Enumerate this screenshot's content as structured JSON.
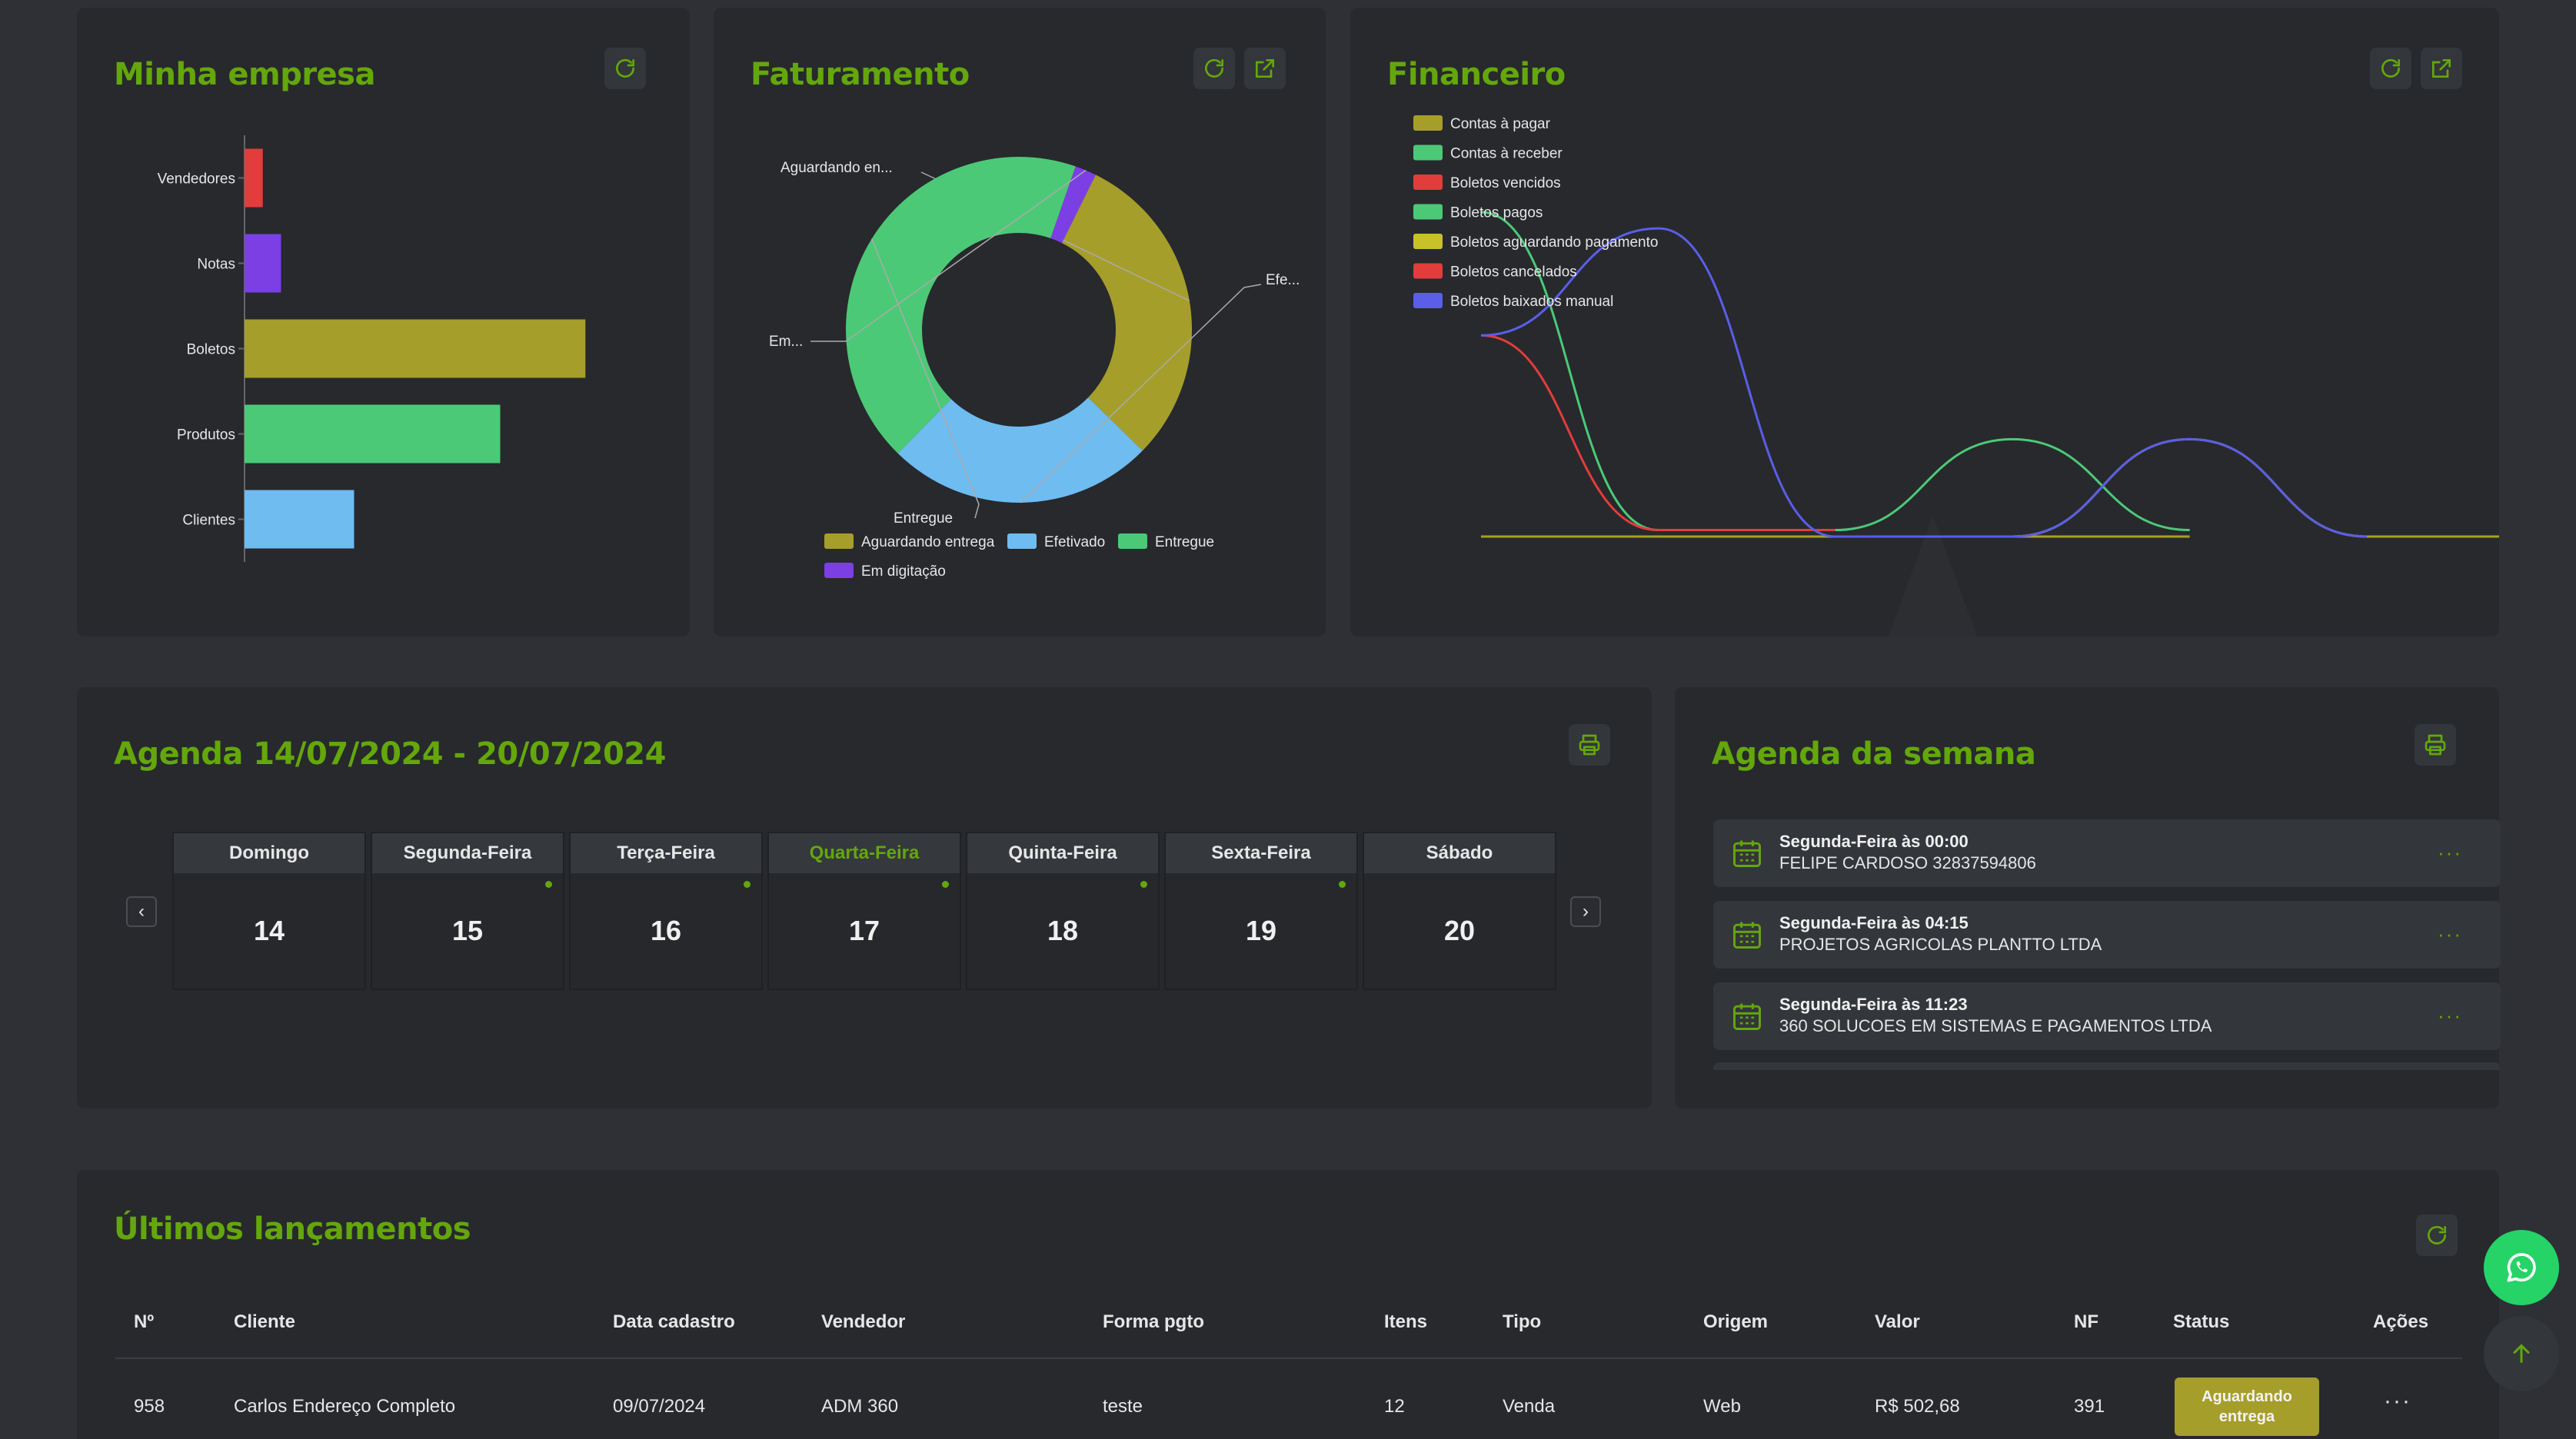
{
  "minha_empresa": {
    "title": "Minha empresa",
    "chart_data": {
      "type": "bar",
      "orientation": "horizontal",
      "categories": [
        "Vendedores",
        "Notas",
        "Boletos",
        "Produtos",
        "Clientes"
      ],
      "values": [
        3,
        6,
        56,
        42,
        18
      ],
      "colors": [
        "#e33c3c",
        "#7b3fe4",
        "#a69e2b",
        "#4cc977",
        "#6ebcf0"
      ],
      "title": "",
      "xlabel": "",
      "ylabel": "",
      "xlim": [
        0,
        60
      ],
      "grid": false
    }
  },
  "faturamento": {
    "title": "Faturamento",
    "chart_data": {
      "type": "pie",
      "donut": true,
      "slices": [
        {
          "label": "Aguardando entrega",
          "short": "Aguardando en...",
          "value": 30,
          "color": "#a69e2b"
        },
        {
          "label": "Efetivado",
          "short": "Efe...",
          "value": 25,
          "color": "#6ebcf0"
        },
        {
          "label": "Entregue",
          "short": "Entregue",
          "value": 43,
          "color": "#4cc977"
        },
        {
          "label": "Em digitação",
          "short": "Em...",
          "value": 2,
          "color": "#7b3fe4"
        }
      ],
      "legend": [
        "Aguardando entrega",
        "Efetivado",
        "Entregue",
        "Em digitação"
      ],
      "legend_position": "bottom"
    }
  },
  "financeiro": {
    "title": "Financeiro",
    "chart_data": {
      "type": "line",
      "smooth": true,
      "x": [
        0,
        1,
        2,
        3,
        4,
        5
      ],
      "ylim": [
        0,
        100
      ],
      "series": [
        {
          "name": "Contas à pagar",
          "color": "#a69e2b",
          "values": [
            0,
            0,
            0,
            0,
            0,
            null
          ]
        },
        {
          "name": "Contas à receber",
          "color": "#4cc977",
          "values": [
            100,
            2,
            2,
            30,
            2,
            null
          ]
        },
        {
          "name": "Boletos vencidos",
          "color": "#e33c3c",
          "values": [
            62,
            2,
            2,
            null,
            null,
            null
          ]
        },
        {
          "name": "Boletos pagos",
          "color": "#4cc977",
          "values": [
            null,
            null,
            null,
            null,
            null,
            null
          ]
        },
        {
          "name": "Boletos aguardando pagamento",
          "color": "#c9c12a",
          "values": [
            null,
            null,
            0,
            0,
            30,
            0
          ]
        },
        {
          "name": "Boletos cancelados",
          "color": "#e33c3c",
          "values": [
            null,
            null,
            null,
            null,
            null,
            null
          ]
        },
        {
          "name": "Boletos baixados manual",
          "color": "#5a5ee8",
          "values": [
            62,
            95,
            0,
            0,
            30,
            0
          ]
        }
      ],
      "legend_position": "top-left",
      "grid": false
    }
  },
  "agenda": {
    "title": "Agenda 14/07/2024 - 20/07/2024",
    "days": [
      {
        "name": "Domingo",
        "num": "14",
        "event": false,
        "active": false
      },
      {
        "name": "Segunda-Feira",
        "num": "15",
        "event": true,
        "active": false
      },
      {
        "name": "Terça-Feira",
        "num": "16",
        "event": true,
        "active": false
      },
      {
        "name": "Quarta-Feira",
        "num": "17",
        "event": true,
        "active": true
      },
      {
        "name": "Quinta-Feira",
        "num": "18",
        "event": true,
        "active": false
      },
      {
        "name": "Sexta-Feira",
        "num": "19",
        "event": true,
        "active": false
      },
      {
        "name": "Sábado",
        "num": "20",
        "event": false,
        "active": false
      }
    ]
  },
  "agenda_semana": {
    "title": "Agenda da semana",
    "events": [
      {
        "when": "Segunda-Feira às 00:00",
        "who": "FELIPE CARDOSO 32837594806"
      },
      {
        "when": "Segunda-Feira às 04:15",
        "who": "PROJETOS AGRICOLAS PLANTTO LTDA"
      },
      {
        "when": "Segunda-Feira às 11:23",
        "who": "360 SOLUCOES EM SISTEMAS E PAGAMENTOS LTDA"
      }
    ]
  },
  "lancamentos": {
    "title": "Últimos lançamentos",
    "columns": [
      "Nº",
      "Cliente",
      "Data cadastro",
      "Vendedor",
      "Forma pgto",
      "Itens",
      "Tipo",
      "Origem",
      "Valor",
      "NF",
      "Status",
      "Ações"
    ],
    "rows": [
      {
        "num": "958",
        "cliente": "Carlos Endereço Completo",
        "data": "09/07/2024",
        "vendedor": "ADM 360",
        "forma": "teste",
        "itens": "12",
        "tipo": "Venda",
        "origem": "Web",
        "valor": "R$ 502,68",
        "nf": "391",
        "status": "Aguardando entrega"
      }
    ]
  },
  "colors": {
    "accent": "#64a70b",
    "whatsapp": "#25d366",
    "status_pending": "#a69e2b"
  },
  "icons": [
    "refresh-icon",
    "external-link-icon",
    "print-icon",
    "calendar-icon",
    "whatsapp-icon",
    "arrow-up-icon",
    "more-icon"
  ]
}
